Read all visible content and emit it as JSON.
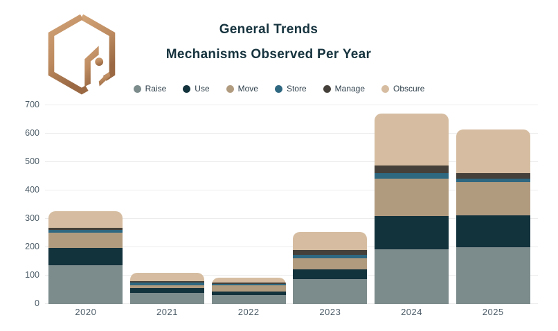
{
  "header": {
    "title": "General Trends",
    "subtitle": "Mechanisms Observed Per Year"
  },
  "logo": {
    "name": "hexagon-brand-logo",
    "gradient_start": "#d2a478",
    "gradient_end": "#9a6944"
  },
  "colors": {
    "title_text": "#16333e",
    "axis_text": "#4d5d68",
    "legend_text": "#2d3e49",
    "gridline": "#ececec",
    "background": "#ffffff"
  },
  "chart_data": {
    "type": "bar",
    "stacked": true,
    "title": "General Trends",
    "subtitle": "Mechanisms Observed Per Year",
    "categories": [
      "2020",
      "2021",
      "2022",
      "2023",
      "2024",
      "2025"
    ],
    "series": [
      {
        "name": "Raise",
        "color": "#7c8b8c",
        "values": [
          137,
          40,
          32,
          88,
          193,
          200
        ]
      },
      {
        "name": "Use",
        "color": "#12323c",
        "values": [
          60,
          15,
          11,
          35,
          116,
          113
        ]
      },
      {
        "name": "Move",
        "color": "#b19b7f",
        "values": [
          54,
          12,
          22,
          38,
          133,
          117
        ]
      },
      {
        "name": "Store",
        "color": "#2e6780",
        "values": [
          10,
          8,
          5,
          13,
          19,
          12
        ]
      },
      {
        "name": "Manage",
        "color": "#454039",
        "values": [
          8,
          6,
          5,
          16,
          26,
          20
        ]
      },
      {
        "name": "Obscure",
        "color": "#d6bda1",
        "values": [
          57,
          29,
          18,
          64,
          183,
          153
        ]
      }
    ],
    "totals": [
      326,
      110,
      93,
      254,
      670,
      615
    ],
    "ylim": [
      0,
      700
    ],
    "yticks": [
      0,
      100,
      200,
      300,
      400,
      500,
      600,
      700
    ],
    "grid": true,
    "legend_position": "top",
    "bar_corner_radius": 10
  }
}
